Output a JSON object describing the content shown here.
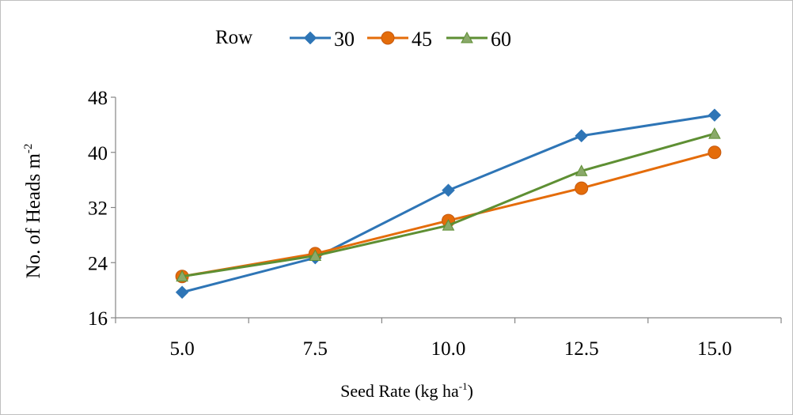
{
  "chart_data": {
    "type": "line",
    "title": "",
    "xlabel": "Seed Rate (kg ha",
    "xlabel_sup": "-1",
    "xlabel_end": ")",
    "ylabel": "No. of Heads m",
    "ylabel_sup": "-2",
    "legend_title": "Row",
    "legend_position": "top",
    "categories": [
      "5.0",
      "7.5",
      "10.0",
      "12.5",
      "15.0"
    ],
    "y_ticks": [
      "16",
      "24",
      "32",
      "40",
      "48"
    ],
    "ylim": [
      16,
      48
    ],
    "grid": false,
    "series": [
      {
        "name": "30",
        "color": "#2E75B6",
        "marker": "diamond",
        "values": [
          19.7,
          24.7,
          34.5,
          42.4,
          45.4
        ]
      },
      {
        "name": "45",
        "color": "#E46C0A",
        "marker": "circle",
        "values": [
          22.0,
          25.3,
          30.1,
          34.8,
          40.0
        ]
      },
      {
        "name": "60",
        "color": "#5E8F33",
        "marker": "triangle",
        "values": [
          22.0,
          25.0,
          29.4,
          37.3,
          42.7
        ]
      }
    ]
  }
}
